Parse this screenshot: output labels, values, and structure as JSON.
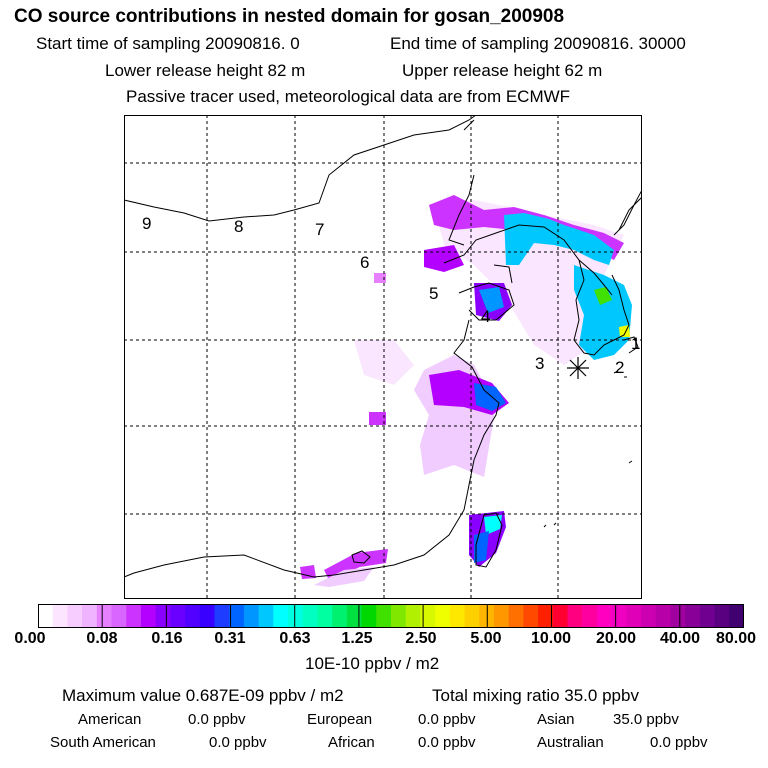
{
  "header": {
    "title": "CO  source contributions in nested domain for gosan_200908",
    "start": "Start time of sampling 20090816.     0",
    "end": "End time of sampling 20090816. 30000",
    "lower": "Lower release height   82 m",
    "upper": "Upper release height   62 m",
    "tracer": "Passive tracer used, meteorological data are from ECMWF"
  },
  "map": {
    "region_labels": [
      "9",
      "8",
      "7",
      "6",
      "5",
      "4",
      "3",
      "2",
      "1"
    ],
    "receptor_icon": "asterisk-receptor-icon"
  },
  "colorbar": {
    "ticks": [
      "0.00",
      "0.08",
      "0.16",
      "0.31",
      "0.63",
      "1.25",
      "2.50",
      "5.00",
      "10.00",
      "20.00",
      "40.00",
      "80.00"
    ],
    "unit": "10E-10 ppbv / m2",
    "colors": [
      "#ffffff",
      "#fce6ff",
      "#f7ccff",
      "#f0b3ff",
      "#e680ff",
      "#d966ff",
      "#cc33ff",
      "#b300ff",
      "#8a00ff",
      "#6a00ff",
      "#5200ff",
      "#3a00ff",
      "#1e3cff",
      "#0064ff",
      "#0096ff",
      "#00c8ff",
      "#00ffff",
      "#00ffe0",
      "#00ffc0",
      "#00ffa0",
      "#00f070",
      "#00e040",
      "#00d800",
      "#40e000",
      "#80e800",
      "#b0f000",
      "#d8f800",
      "#f0ff00",
      "#ffe800",
      "#ffd000",
      "#ffb400",
      "#ff9800",
      "#ff7000",
      "#ff4800",
      "#ff2000",
      "#ff0030",
      "#ff0080",
      "#ff00a0",
      "#ff00c0",
      "#f000c0",
      "#e000b8",
      "#cc00b0",
      "#b800a8",
      "#a000a0",
      "#880098",
      "#700090",
      "#580080",
      "#400070"
    ]
  },
  "stats": {
    "max_label": "Maximum value  0.687E-09 ppbv / m2",
    "total_label": "Total mixing ratio       35.0 ppbv",
    "regions": [
      {
        "name": "American",
        "value": "0.0 ppbv"
      },
      {
        "name": "European",
        "value": "0.0 ppbv"
      },
      {
        "name": "Asian",
        "value": "35.0 ppbv"
      },
      {
        "name": "South American",
        "value": "0.0 ppbv"
      },
      {
        "name": "African",
        "value": "0.0 ppbv"
      },
      {
        "name": "Australian",
        "value": "0.0 ppbv"
      }
    ]
  }
}
